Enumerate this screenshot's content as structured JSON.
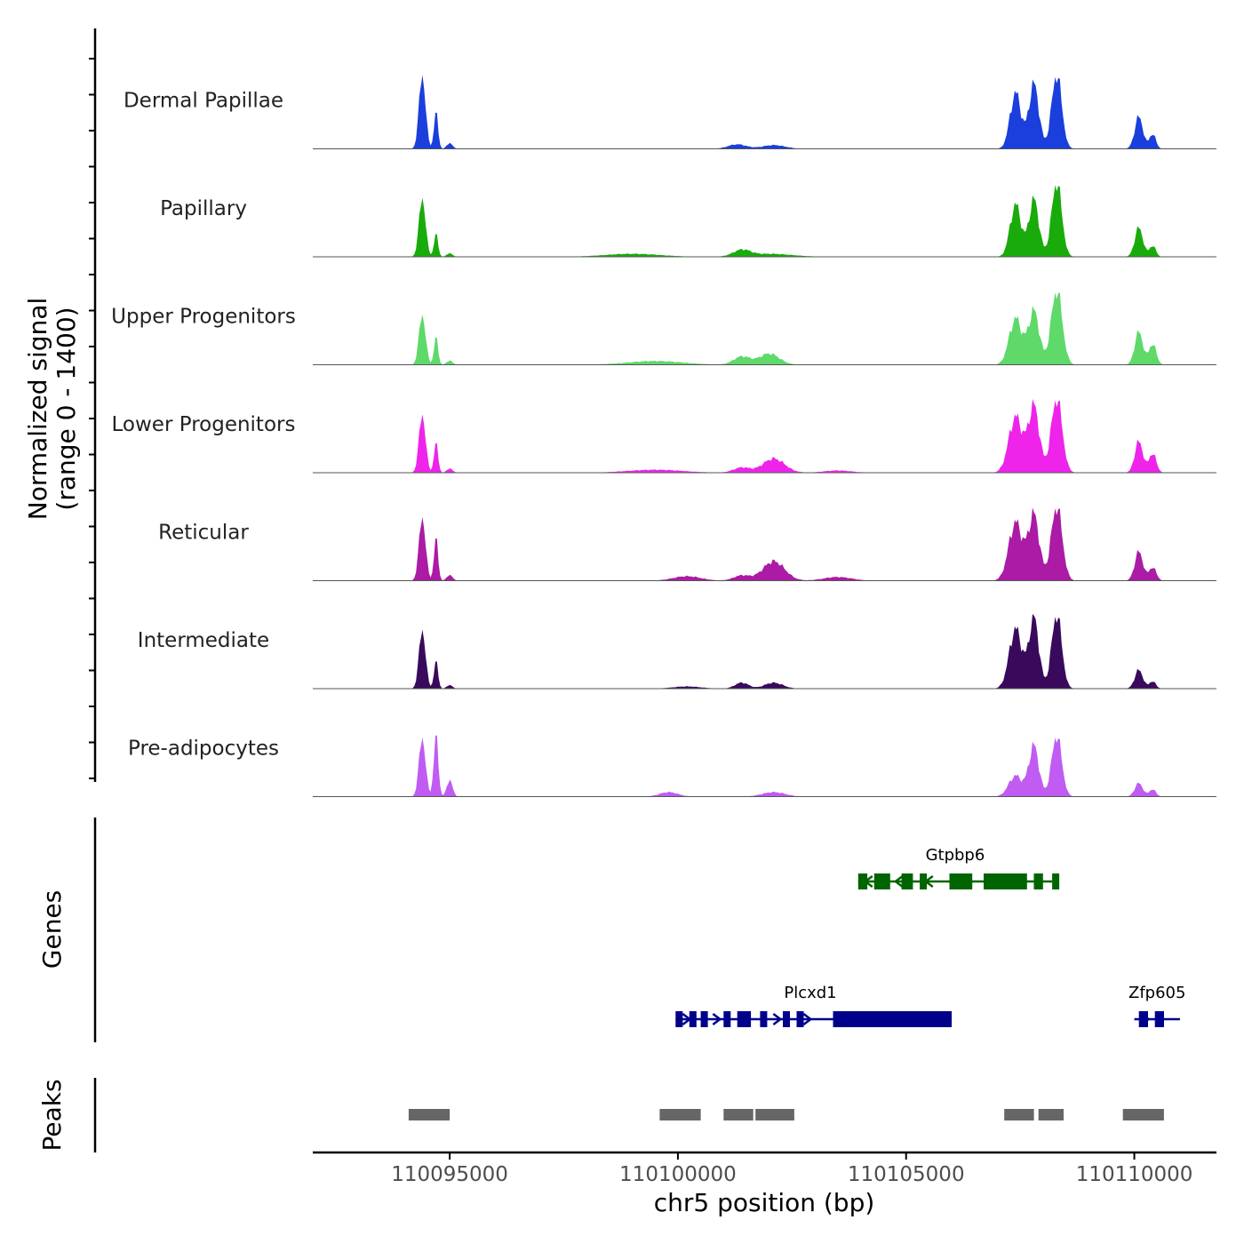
{
  "chart_data": {
    "type": "area",
    "title": "",
    "region": "chr5",
    "xlabel": "chr5 position (bp)",
    "ylabel": "Normalized signal",
    "ylabel_range": "(range 0 - 1400)",
    "ylim": [
      0,
      1400
    ],
    "xlim": [
      110092000,
      110111800
    ],
    "x_ticks": [
      110095000,
      110100000,
      110105000,
      110110000
    ],
    "x_tick_labels": [
      "110095000",
      "110100000",
      "110105000",
      "110110000"
    ],
    "series": [
      {
        "name": "Dermal Papillae",
        "color": "#1a3fdc",
        "peaks": [
          [
            110094400,
            1000,
            70
          ],
          [
            110094700,
            480,
            45
          ],
          [
            110095000,
            80,
            60
          ],
          [
            110101300,
            60,
            200
          ],
          [
            110102100,
            50,
            250
          ],
          [
            110107400,
            750,
            120
          ],
          [
            110107800,
            870,
            110
          ],
          [
            110108300,
            1000,
            110
          ],
          [
            110110100,
            430,
            90
          ],
          [
            110110400,
            200,
            70
          ]
        ]
      },
      {
        "name": "Papillary",
        "color": "#19ab0b",
        "peaks": [
          [
            110094400,
            800,
            70
          ],
          [
            110094700,
            300,
            45
          ],
          [
            110095000,
            50,
            60
          ],
          [
            110099000,
            40,
            600
          ],
          [
            110101400,
            80,
            180
          ],
          [
            110102000,
            40,
            500
          ],
          [
            110107400,
            700,
            120
          ],
          [
            110107800,
            770,
            110
          ],
          [
            110108300,
            1000,
            110
          ],
          [
            110110100,
            390,
            90
          ],
          [
            110110400,
            150,
            70
          ]
        ]
      },
      {
        "name": "Upper Progenitors",
        "color": "#5ed96a",
        "peaks": [
          [
            110094400,
            680,
            70
          ],
          [
            110094700,
            360,
            45
          ],
          [
            110095000,
            60,
            60
          ],
          [
            110099500,
            50,
            600
          ],
          [
            110101400,
            110,
            180
          ],
          [
            110102000,
            150,
            220
          ],
          [
            110107400,
            620,
            140
          ],
          [
            110107800,
            720,
            120
          ],
          [
            110108300,
            1000,
            120
          ],
          [
            110110100,
            440,
            90
          ],
          [
            110110400,
            280,
            80
          ]
        ]
      },
      {
        "name": "Lower Progenitors",
        "color": "#ee24ea",
        "peaks": [
          [
            110094400,
            790,
            70
          ],
          [
            110094700,
            390,
            45
          ],
          [
            110095000,
            60,
            60
          ],
          [
            110099500,
            40,
            600
          ],
          [
            110101400,
            70,
            180
          ],
          [
            110102100,
            190,
            240
          ],
          [
            110103500,
            30,
            300
          ],
          [
            110107400,
            750,
            150
          ],
          [
            110107800,
            890,
            120
          ],
          [
            110108300,
            1000,
            120
          ],
          [
            110110100,
            420,
            90
          ],
          [
            110110400,
            260,
            80
          ]
        ]
      },
      {
        "name": "Reticular",
        "color": "#ab1ba5",
        "peaks": [
          [
            110094400,
            860,
            70
          ],
          [
            110094700,
            560,
            45
          ],
          [
            110095000,
            80,
            60
          ],
          [
            110100200,
            60,
            300
          ],
          [
            110101400,
            70,
            180
          ],
          [
            110102100,
            260,
            240
          ],
          [
            110103500,
            50,
            300
          ],
          [
            110107400,
            780,
            150
          ],
          [
            110107800,
            880,
            120
          ],
          [
            110108300,
            1000,
            120
          ],
          [
            110110100,
            390,
            90
          ],
          [
            110110400,
            180,
            80
          ]
        ]
      },
      {
        "name": "Intermediate",
        "color": "#390a5c",
        "peaks": [
          [
            110094400,
            800,
            70
          ],
          [
            110094700,
            360,
            45
          ],
          [
            110095000,
            50,
            60
          ],
          [
            110100200,
            30,
            300
          ],
          [
            110101400,
            80,
            150
          ],
          [
            110102100,
            80,
            200
          ],
          [
            110107400,
            800,
            140
          ],
          [
            110107800,
            950,
            110
          ],
          [
            110108300,
            1000,
            110
          ],
          [
            110110100,
            250,
            90
          ],
          [
            110110400,
            100,
            70
          ]
        ]
      },
      {
        "name": "Pre-adipocytes",
        "color": "#c05cf2",
        "peaks": [
          [
            110094400,
            800,
            70
          ],
          [
            110094700,
            800,
            50
          ],
          [
            110095000,
            230,
            60
          ],
          [
            110099800,
            60,
            200
          ],
          [
            110102100,
            60,
            250
          ],
          [
            110107400,
            280,
            150
          ],
          [
            110107800,
            680,
            110
          ],
          [
            110108300,
            820,
            110
          ],
          [
            110110100,
            180,
            90
          ],
          [
            110110400,
            100,
            70
          ]
        ]
      }
    ],
    "genes": [
      {
        "name": "Gtpbp6",
        "color": "#006400",
        "start": 110103950,
        "end": 110108200,
        "strand": "-",
        "exons": [
          [
            110103950,
            110104150
          ],
          [
            110104300,
            110104650
          ],
          [
            110104900,
            110105150
          ],
          [
            110105300,
            110105400
          ],
          [
            110105950,
            110106450
          ],
          [
            110106700,
            110107650
          ],
          [
            110107800,
            110108000
          ],
          [
            110108200,
            110108200
          ]
        ]
      },
      {
        "name": "Plcxd1",
        "color": "#00008b",
        "start": 110099950,
        "end": 110106000,
        "strand": "+",
        "exons": [
          [
            110099950,
            110100050
          ],
          [
            110100250,
            110100400
          ],
          [
            110100500,
            110100600
          ],
          [
            110101000,
            110101100
          ],
          [
            110101300,
            110101600
          ],
          [
            110101800,
            110101950
          ],
          [
            110102300,
            110102450
          ],
          [
            110102600,
            110102750
          ],
          [
            110103400,
            110106000
          ]
        ]
      },
      {
        "name": "Zfp605",
        "color": "#00008b",
        "start": 110110000,
        "end": 110111000,
        "strand": "+",
        "exons": [
          [
            110110100,
            110110300
          ],
          [
            110110450,
            110110650
          ]
        ]
      }
    ],
    "peaks_track": [
      [
        110094100,
        110095000
      ],
      [
        110099600,
        110100500
      ],
      [
        110101000,
        110101650
      ],
      [
        110101700,
        110102550
      ],
      [
        110107150,
        110107800
      ],
      [
        110107900,
        110108450
      ],
      [
        110109750,
        110110650
      ]
    ],
    "panel_titles": {
      "genes": "Genes",
      "peaks": "Peaks"
    }
  }
}
